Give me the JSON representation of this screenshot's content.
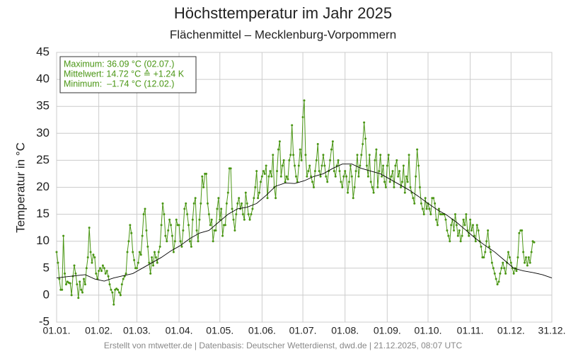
{
  "chart_data": {
    "type": "line",
    "title": "Höchsttemperatur im Jahr 2025",
    "subtitle": "Flächenmittel – Mecklenburg-Vorpommern",
    "y_label": "Temperatur in °C",
    "annotations": [
      "Maximum: 36.09 °C (02.07.)",
      "Mittelwert: 14.72 °C ≙ +1.24 K",
      "Minimum:  –1.74 °C (12.02.)"
    ],
    "footer": "Erstellt von mtwetter.de | Datenbasis: Deutscher Wetterdienst, dwd.de | 21.12.2025, 08:07 UTC",
    "grid": true,
    "xlim": [
      1,
      365
    ],
    "ylim": [
      -5,
      45
    ],
    "yticks": [
      -5,
      0,
      5,
      10,
      15,
      20,
      25,
      30,
      35,
      40,
      45
    ],
    "xticks": [
      {
        "value": 1,
        "label": "01.01."
      },
      {
        "value": 32,
        "label": "01.02."
      },
      {
        "value": 60,
        "label": "01.03."
      },
      {
        "value": 91,
        "label": "01.04."
      },
      {
        "value": 121,
        "label": "01.05."
      },
      {
        "value": 152,
        "label": "01.06."
      },
      {
        "value": 182,
        "label": "01.07."
      },
      {
        "value": 213,
        "label": "01.08."
      },
      {
        "value": 244,
        "label": "01.09."
      },
      {
        "value": 274,
        "label": "01.10."
      },
      {
        "value": 305,
        "label": "01.11."
      },
      {
        "value": 335,
        "label": "01.12."
      },
      {
        "value": 365,
        "label": "31.12."
      }
    ],
    "x": [
      1,
      2,
      3,
      4,
      5,
      6,
      7,
      8,
      9,
      10,
      11,
      12,
      13,
      14,
      15,
      16,
      17,
      18,
      19,
      20,
      21,
      22,
      23,
      24,
      25,
      26,
      27,
      28,
      29,
      30,
      31,
      32,
      33,
      34,
      35,
      36,
      37,
      38,
      39,
      40,
      41,
      42,
      43,
      44,
      45,
      46,
      47,
      48,
      49,
      50,
      51,
      52,
      53,
      54,
      55,
      56,
      57,
      58,
      59,
      60,
      61,
      62,
      63,
      64,
      65,
      66,
      67,
      68,
      69,
      70,
      71,
      72,
      73,
      74,
      75,
      76,
      77,
      78,
      79,
      80,
      81,
      82,
      83,
      84,
      85,
      86,
      87,
      88,
      89,
      90,
      91,
      92,
      93,
      94,
      95,
      96,
      97,
      98,
      99,
      100,
      101,
      102,
      103,
      104,
      105,
      106,
      107,
      108,
      109,
      110,
      111,
      112,
      113,
      114,
      115,
      116,
      117,
      118,
      119,
      120,
      121,
      122,
      123,
      124,
      125,
      126,
      127,
      128,
      129,
      130,
      131,
      132,
      133,
      134,
      135,
      136,
      137,
      138,
      139,
      140,
      141,
      142,
      143,
      144,
      145,
      146,
      147,
      148,
      149,
      150,
      151,
      152,
      153,
      154,
      155,
      156,
      157,
      158,
      159,
      160,
      161,
      162,
      163,
      164,
      165,
      166,
      167,
      168,
      169,
      170,
      171,
      172,
      173,
      174,
      175,
      176,
      177,
      178,
      179,
      180,
      181,
      182,
      183,
      184,
      185,
      186,
      187,
      188,
      189,
      190,
      191,
      192,
      193,
      194,
      195,
      196,
      197,
      198,
      199,
      200,
      201,
      202,
      203,
      204,
      205,
      206,
      207,
      208,
      209,
      210,
      211,
      212,
      213,
      214,
      215,
      216,
      217,
      218,
      219,
      220,
      221,
      222,
      223,
      224,
      225,
      226,
      227,
      228,
      229,
      230,
      231,
      232,
      233,
      234,
      235,
      236,
      237,
      238,
      239,
      240,
      241,
      242,
      243,
      244,
      245,
      246,
      247,
      248,
      249,
      250,
      251,
      252,
      253,
      254,
      255,
      256,
      257,
      258,
      259,
      260,
      261,
      262,
      263,
      264,
      265,
      266,
      267,
      268,
      269,
      270,
      271,
      272,
      273,
      274,
      275,
      276,
      277,
      278,
      279,
      280,
      281,
      282,
      283,
      284,
      285,
      286,
      287,
      288,
      289,
      290,
      291,
      292,
      293,
      294,
      295,
      296,
      297,
      298,
      299,
      300,
      301,
      302,
      303,
      304,
      305,
      306,
      307,
      308,
      309,
      310,
      311,
      312,
      313,
      314,
      315,
      316,
      317,
      318,
      319,
      320,
      321,
      322,
      323,
      324,
      325,
      326,
      327,
      328,
      329,
      330,
      331,
      332,
      333,
      334,
      335,
      336,
      337,
      338,
      339,
      340,
      341,
      342,
      343,
      344,
      345,
      346,
      347,
      348,
      349,
      350,
      351,
      352,
      353,
      354,
      355,
      356,
      357,
      358,
      359,
      360,
      361,
      362,
      363,
      364,
      365
    ],
    "series": [
      {
        "color": "#4a9614",
        "markers": true,
        "values": [
          8,
          6,
          3,
          1,
          1,
          11,
          4,
          2,
          2.5,
          2.3,
          2.2,
          0,
          3.5,
          5.5,
          4,
          2,
          -0.5,
          2.5,
          1,
          0.5,
          3,
          2,
          5,
          7,
          12.5,
          8,
          6,
          7.5,
          7,
          4,
          3,
          4.5,
          5,
          4.5,
          5.5,
          5,
          4,
          4.5,
          3.5,
          2,
          1,
          0.5,
          -1.74,
          1,
          1.2,
          1,
          0.5,
          0,
          2,
          3,
          3.5,
          4,
          8,
          10,
          13,
          11.5,
          8,
          6.5,
          5,
          5,
          6,
          8,
          7.5,
          11,
          15,
          16,
          12,
          9,
          6,
          4,
          7,
          5.5,
          8,
          7,
          6,
          8,
          9,
          13,
          17,
          15,
          11,
          10,
          12,
          14,
          13,
          11,
          8,
          10,
          14,
          13,
          13,
          10,
          9,
          12,
          16,
          17,
          15,
          13,
          10,
          9,
          14,
          17,
          18,
          12,
          10,
          14,
          17,
          22,
          20,
          22.5,
          22.5,
          17,
          15,
          13,
          14,
          10,
          12,
          12,
          16,
          18,
          14,
          16,
          11,
          13,
          13,
          17,
          19,
          23.5,
          23.5,
          16,
          14,
          12,
          15,
          17,
          18,
          16,
          17,
          15,
          14,
          19,
          17,
          15,
          14,
          15,
          16,
          18,
          20,
          23,
          18,
          19,
          21,
          22,
          23,
          22.5,
          24,
          18,
          22,
          23,
          22,
          26,
          20,
          18,
          23,
          27,
          28.5,
          22,
          24,
          25,
          21,
          22,
          21.5,
          25,
          26,
          31.5,
          26,
          24,
          22,
          21,
          24,
          27,
          25,
          33,
          36.09,
          26,
          22,
          23,
          24,
          22,
          21,
          20,
          23,
          25,
          28,
          23,
          22,
          24,
          26,
          24,
          22,
          21,
          23,
          25,
          27,
          28.5,
          23,
          22,
          24,
          25,
          23,
          21,
          20,
          22,
          23,
          22,
          19,
          21,
          24,
          22,
          18,
          20,
          23,
          26,
          22,
          24,
          26,
          28,
          32,
          29,
          24,
          22,
          26,
          21,
          20,
          19,
          25,
          27,
          20,
          23,
          26,
          22,
          24,
          21,
          20,
          24,
          26,
          21,
          22,
          23,
          20,
          24,
          25,
          22,
          23,
          20,
          21,
          24,
          19,
          22,
          21,
          26,
          20,
          19,
          18,
          17,
          22,
          27,
          24,
          20,
          17,
          16,
          15,
          18,
          16,
          17,
          16,
          15,
          18,
          18,
          17,
          14,
          13,
          16,
          15,
          15,
          15,
          15,
          14,
          12,
          11,
          10,
          13,
          14,
          12,
          15,
          13,
          11,
          12,
          10,
          11,
          14,
          13,
          15,
          12,
          11,
          14,
          12,
          13,
          11,
          10,
          13,
          12,
          10,
          9,
          7,
          7,
          8,
          10,
          12,
          9,
          8,
          6,
          5,
          4,
          3,
          2,
          2.5,
          4,
          5,
          6,
          5,
          4,
          6,
          8,
          7,
          6,
          5,
          4,
          5,
          4.5,
          7,
          11.5,
          12,
          12,
          8,
          6,
          7,
          5.5,
          7,
          6,
          8,
          10,
          9.8,
          null,
          null,
          null,
          null,
          null,
          null,
          null,
          null,
          null,
          null,
          null,
          null,
          null
        ]
      },
      {
        "color": "#000000",
        "markers": false,
        "x": [
          1,
          8,
          15,
          22,
          29,
          36,
          43,
          50,
          57,
          64,
          71,
          78,
          85,
          92,
          99,
          106,
          113,
          120,
          127,
          134,
          141,
          148,
          155,
          162,
          169,
          176,
          183,
          190,
          197,
          204,
          211,
          218,
          225,
          232,
          239,
          246,
          253,
          260,
          267,
          274,
          281,
          288,
          295,
          302,
          309,
          316,
          323,
          330,
          337,
          344,
          351,
          358,
          365
        ],
        "values": [
          3.2,
          3.4,
          3.6,
          3.8,
          3.0,
          2.6,
          3.2,
          3.6,
          4.0,
          5.0,
          6.0,
          7.0,
          8.2,
          9.2,
          10.5,
          11.5,
          12.0,
          13.5,
          15.0,
          16.0,
          16.3,
          17.0,
          18.5,
          20.2,
          20.8,
          20.7,
          21.2,
          22.0,
          22.5,
          23.5,
          24.3,
          24.3,
          23.5,
          23.0,
          22.5,
          21.5,
          20.5,
          19.5,
          18.3,
          17.0,
          15.8,
          14.8,
          13.5,
          12.0,
          10.5,
          9.2,
          8.0,
          6.5,
          5.0,
          4.5,
          4.2,
          3.8,
          3.2
        ]
      }
    ]
  }
}
